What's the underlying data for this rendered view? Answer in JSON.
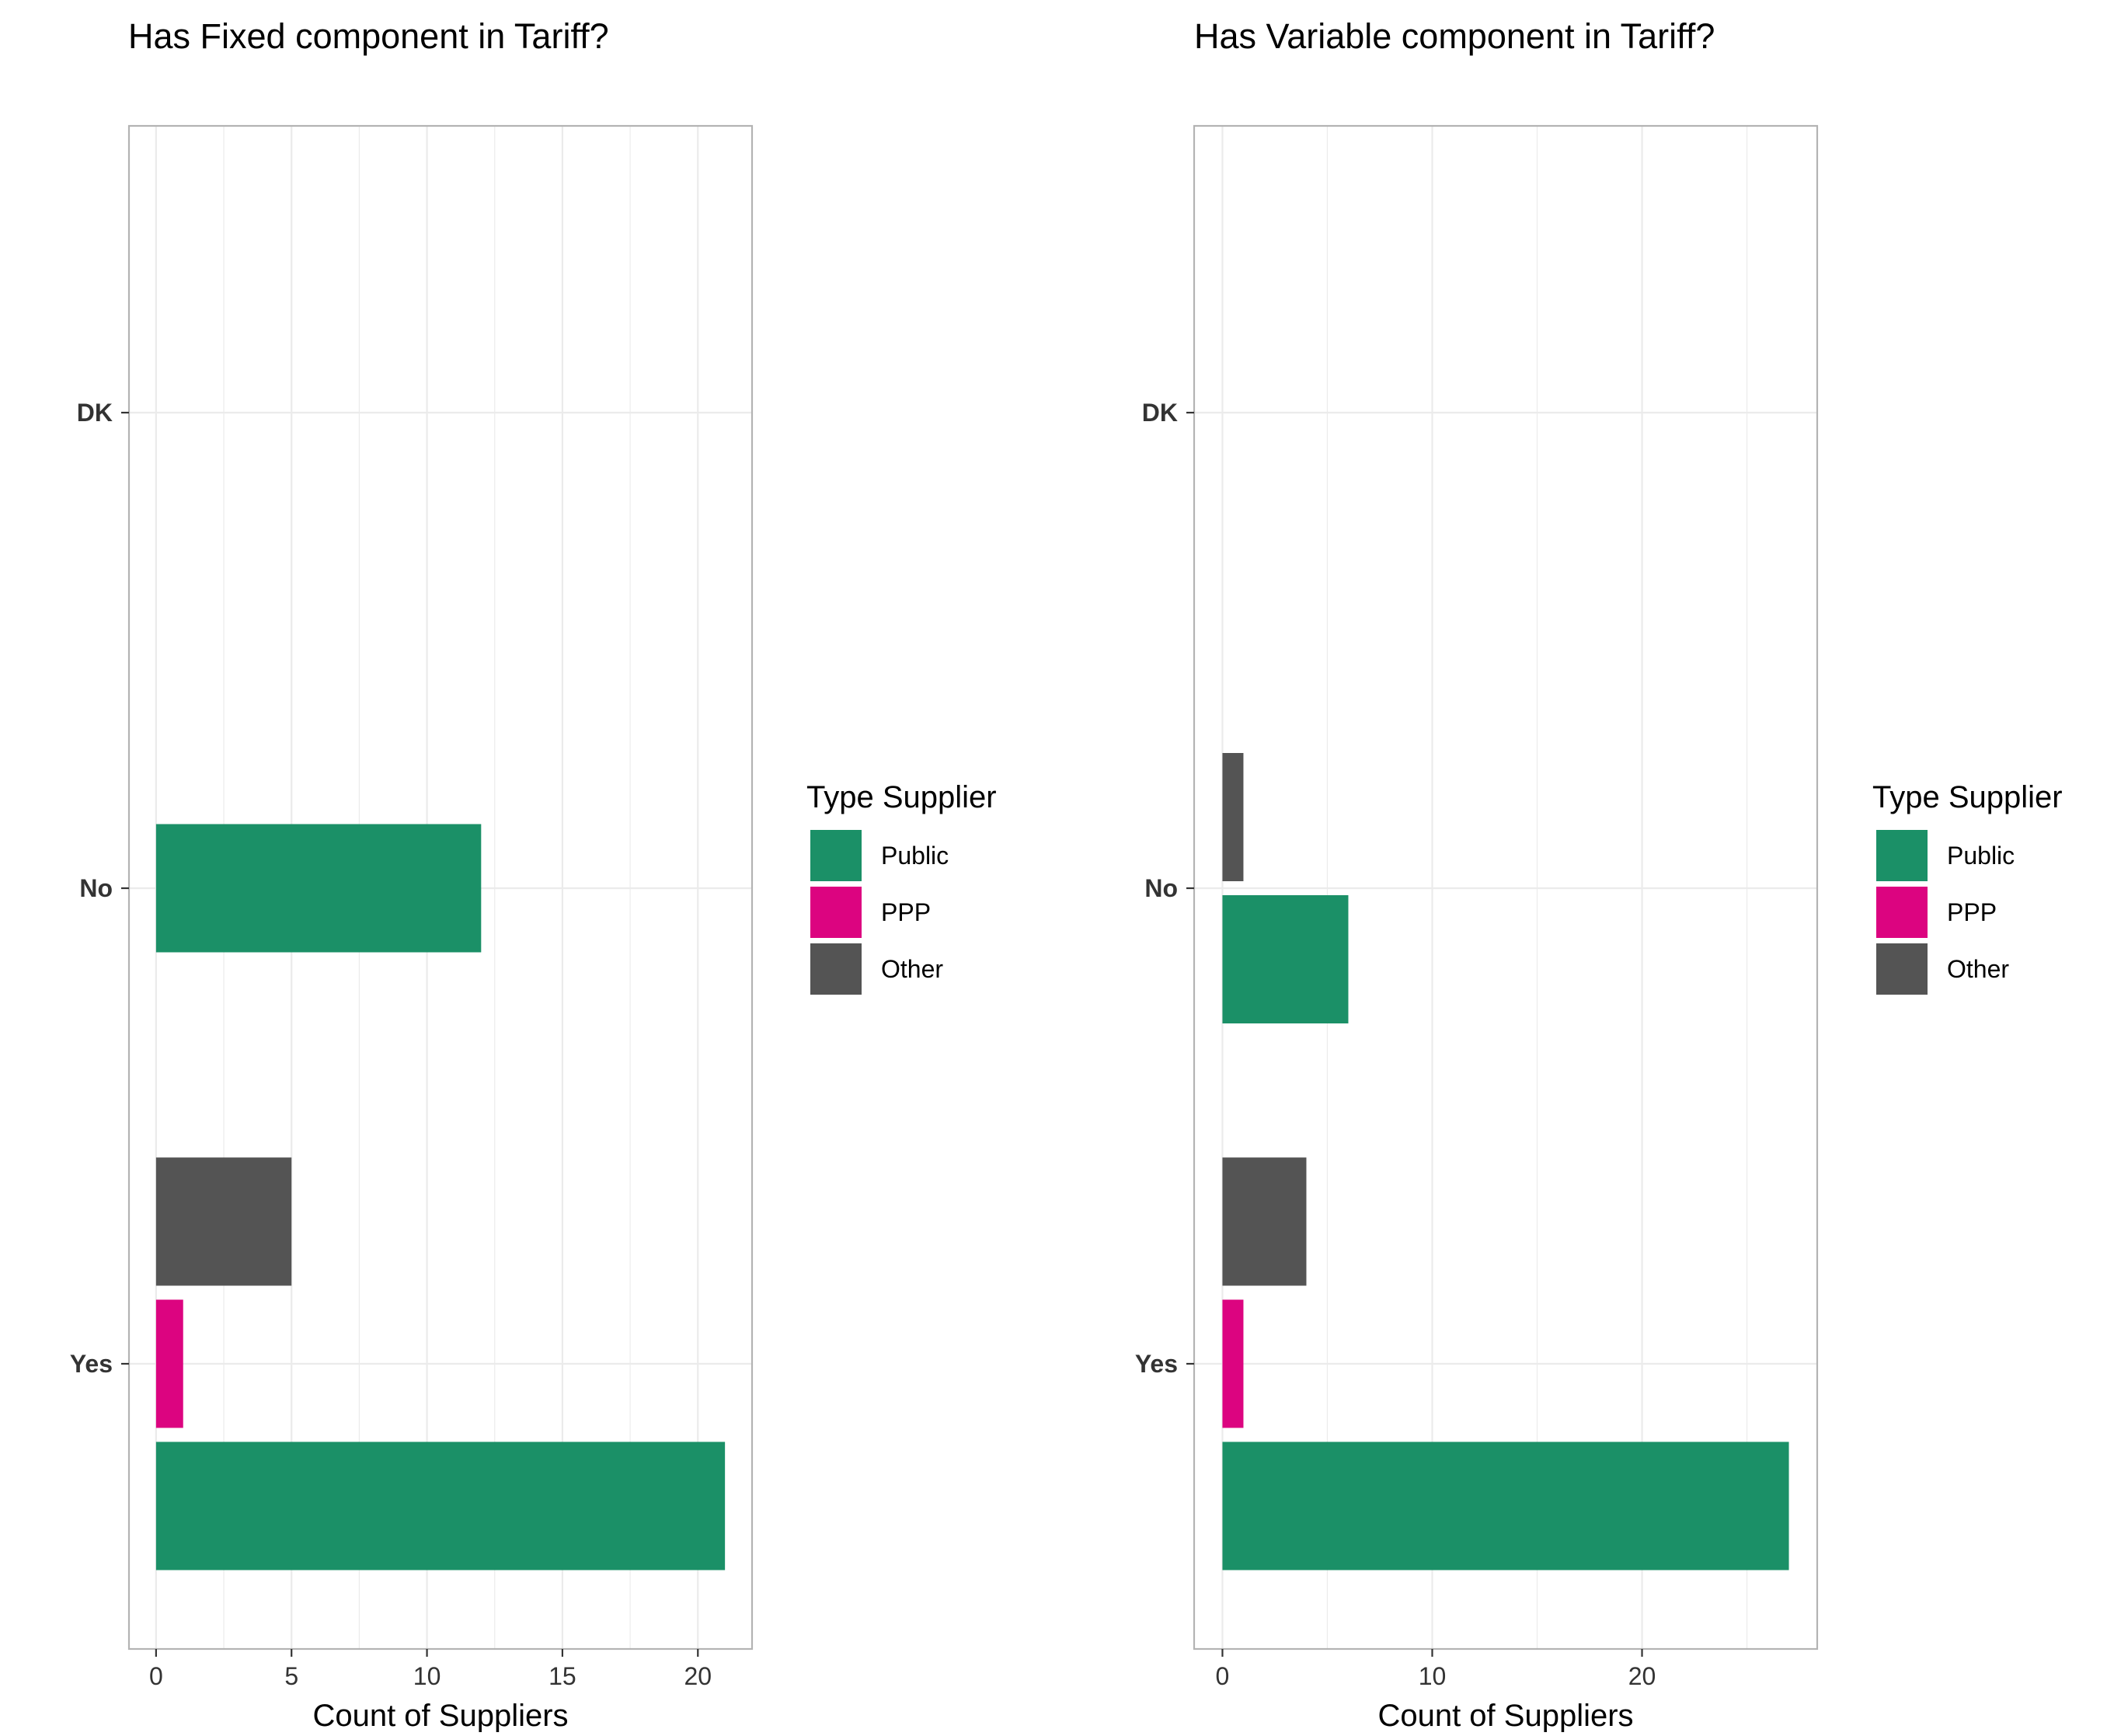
{
  "colors": {
    "Public": "#1B9067",
    "PPP": "#DC0480",
    "Other": "#545454",
    "grid": "#EBEBEB",
    "panel_border": "#B3B3B3",
    "tick_text": "#333333"
  },
  "chart_data": [
    {
      "type": "bar",
      "orientation": "horizontal",
      "title": "Has Fixed component in Tariff?",
      "xlabel": "Count of Suppliers",
      "ylabel": "",
      "categories": [
        "DK",
        "No",
        "Yes"
      ],
      "xlim": [
        -1,
        22
      ],
      "xticks": [
        0,
        5,
        10,
        15,
        20
      ],
      "grid": true,
      "legend": {
        "title": "Type Supplier",
        "position": "right",
        "entries": [
          "Public",
          "PPP",
          "Other"
        ]
      },
      "series": [
        {
          "name": "Public",
          "values": [
            0,
            12,
            21
          ]
        },
        {
          "name": "PPP",
          "values": [
            0,
            0,
            1
          ]
        },
        {
          "name": "Other",
          "values": [
            0,
            0,
            5
          ]
        }
      ]
    },
    {
      "type": "bar",
      "orientation": "horizontal",
      "title": "Has Variable component in Tariff?",
      "xlabel": "Count of Suppliers",
      "ylabel": "",
      "categories": [
        "DK",
        "No",
        "Yes"
      ],
      "xlim": [
        -1.35,
        28.35
      ],
      "xticks": [
        0,
        10,
        20
      ],
      "grid": true,
      "legend": {
        "title": "Type Supplier",
        "position": "right",
        "entries": [
          "Public",
          "PPP",
          "Other"
        ]
      },
      "series": [
        {
          "name": "Public",
          "values": [
            0,
            6,
            27
          ]
        },
        {
          "name": "PPP",
          "values": [
            0,
            0,
            1
          ]
        },
        {
          "name": "Other",
          "values": [
            0,
            1,
            4
          ]
        }
      ]
    }
  ]
}
